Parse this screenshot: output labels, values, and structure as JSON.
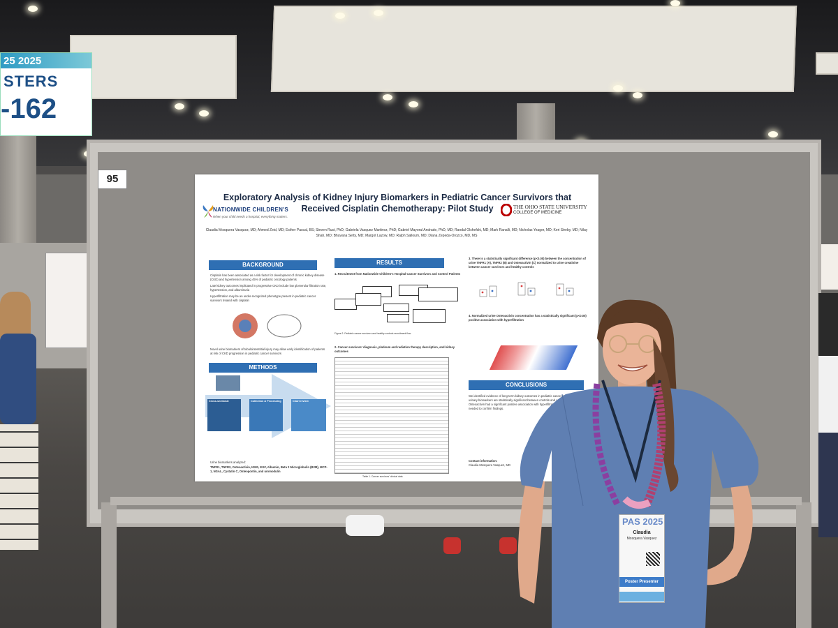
{
  "banner": {
    "title_fragment": "25 2025",
    "line2": "STERS",
    "line3": "-162"
  },
  "board": {
    "number": "95"
  },
  "poster": {
    "title_line1": "Exploratory Analysis of Kidney Injury Biomarkers in Pediatric Cancer Survivors that",
    "title_line2": "Received Cisplatin Chemotherapy: Pilot Study",
    "logo_left_name": "NATIONWIDE CHILDREN'S",
    "logo_left_tagline": "When your child needs a hospital, everything matters.",
    "logo_right_name": "THE OHIO STATE UNIVERSITY",
    "logo_right_sub": "COLLEGE OF MEDICINE",
    "authors": "Claudia Mosquera Vasquez, MD; Ahmed Zeid, MD; Esther Pascal, BS; Steven Rust, PhD; Gabriela Vasquez Martinez, PhD; Gabriel Mayoral Andrade, PhD, MD; Randal Olshefski, MD; Mark Ranalli, MD; Nicholas Yeager, MD; Keri Streby, MD; Nilay Shah, MD; Bhuvana Setty, MD; Margot Lazow, MD; Ralph Salloum, MD; Diana Zepeda-Orozco, MD, MS",
    "sections": {
      "background": "BACKGROUND",
      "results": "RESULTS",
      "methods": "METHODS",
      "conclusions": "CONCLUSIONS"
    },
    "background_bullets": [
      "Cisplatin has been associated as a risk factor for development of chronic kidney disease (CKD) and hypertension among 45% of pediatric oncology patients",
      "Late kidney outcomes implicated in progressive CKD include low glomerular filtration rate, hypertension, and albuminuria",
      "Hyperfiltration may be an under-recognized phenotype present in pediatric cancer survivors treated with cisplatin"
    ],
    "results_item1": "1. Recruitment from Nationwide Children's Hospital Cancer Survivors and Control Patients",
    "results_item2": "2. Cancer survivors' diagnosis, platinum and radiation therapy description, and kidney outcomes",
    "results_item3": "3. There is a statistically significant difference (p<0.05) between the concentration of urine TNFR1 (A), TNFR2 (B) and Osteoactivin (C) normalized to urine creatinine between cancer survivors and healthy controls",
    "results_item4": "4. Normalized urine Osteoactivin concentration has a statistically significant (p<0.05) positive association with hyperfiltration",
    "methods_steps": [
      "Cross-sectional",
      "Collection & Processing",
      "Chart review"
    ],
    "biomarkers_label": "Urine biomarkers analyzed:",
    "biomarkers": "TNFR1, TNFR2, Osteoactivin, KIM1, EGF, Albumin, Beta 2 Microglobulin (B2M), MCP-1, NGAL, Cystatin C, Osteopontin, and uromodulin",
    "table_caption": "Table 1. Cancer survivors' clinical data",
    "contact_label": "Contact information:",
    "contact_name": "Claudia Mosquera Vasquez, MD"
  },
  "badge": {
    "event": "PAS 2025",
    "first_name": "Claudia",
    "last_name": "Mosquera Vasquez",
    "role": "Poster Presenter"
  },
  "colors": {
    "poster_section_blue": "#2f6fb3",
    "dress_blue": "#5f7fb2",
    "badge_role_blue": "#3d7cc9"
  }
}
